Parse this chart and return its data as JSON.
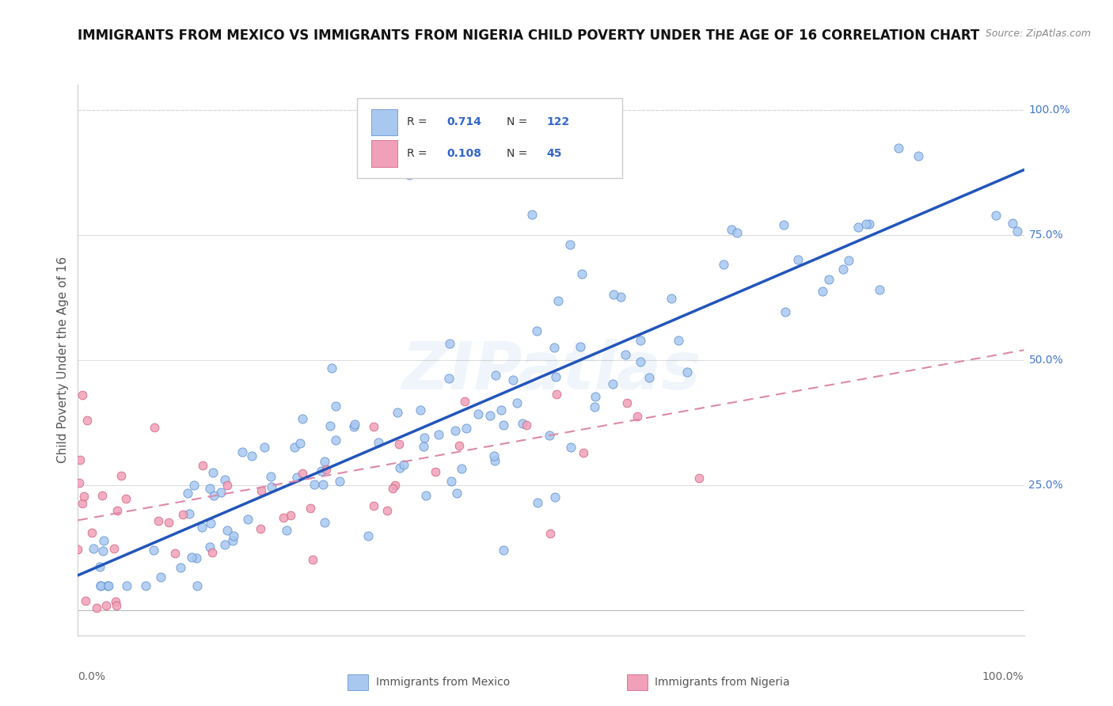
{
  "title": "IMMIGRANTS FROM MEXICO VS IMMIGRANTS FROM NIGERIA CHILD POVERTY UNDER THE AGE OF 16 CORRELATION CHART",
  "source": "Source: ZipAtlas.com",
  "ylabel": "Child Poverty Under the Age of 16",
  "xlim": [
    0,
    1
  ],
  "ylim": [
    -0.05,
    1.05
  ],
  "yticks": [
    0.0,
    0.25,
    0.5,
    0.75,
    1.0
  ],
  "ytick_labels": [
    "",
    "25.0%",
    "50.0%",
    "75.0%",
    "100.0%"
  ],
  "mexico_color": "#a8c8f0",
  "mexico_edge_color": "#5588cc",
  "nigeria_color": "#f0a0b8",
  "nigeria_edge_color": "#cc5577",
  "mexico_line_color": "#2255bb",
  "nigeria_line_color": "#dd88aa",
  "mexico_R": 0.714,
  "mexico_N": 122,
  "nigeria_R": 0.108,
  "nigeria_N": 45,
  "watermark": "ZIPatlas",
  "legend_label_mexico": "Immigrants from Mexico",
  "legend_label_nigeria": "Immigrants from Nigeria",
  "mexico_line_x0": 0.0,
  "mexico_line_y0": 0.07,
  "mexico_line_x1": 1.0,
  "mexico_line_y1": 0.88,
  "nigeria_line_x0": 0.0,
  "nigeria_line_y0": 0.18,
  "nigeria_line_x1": 1.0,
  "nigeria_line_y1": 0.52,
  "background_color": "#ffffff",
  "grid_color": "#dddddd",
  "title_fontsize": 12,
  "source_fontsize": 9,
  "axis_label_fontsize": 11,
  "tick_fontsize": 10,
  "legend_fontsize": 10,
  "watermark_fontsize": 60,
  "watermark_alpha": 0.08
}
